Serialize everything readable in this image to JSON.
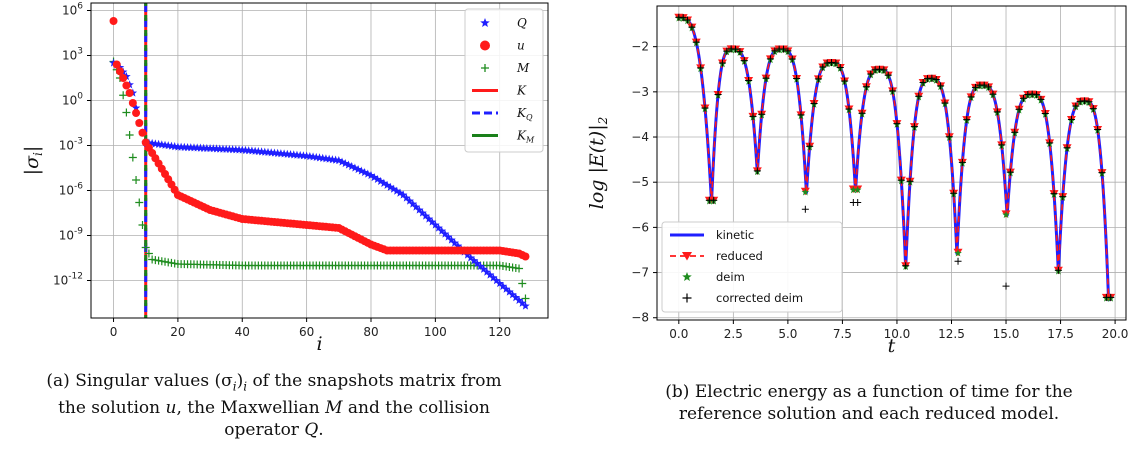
{
  "chart_data": [
    {
      "type": "scatter",
      "ylabel": "|σi|",
      "xlabel": "i",
      "yscale": "log",
      "ylim_log10": [
        -14.5,
        6.5
      ],
      "xlim": [
        -7,
        135
      ],
      "xticks": [
        0,
        20,
        40,
        60,
        80,
        100,
        120
      ],
      "yticks": [
        {
          "exp": 6,
          "label": "10^6"
        },
        {
          "exp": 3,
          "label": "10^3"
        },
        {
          "exp": 0,
          "label": "10^0"
        },
        {
          "exp": -3,
          "label": "10^-3"
        },
        {
          "exp": -6,
          "label": "10^-6"
        },
        {
          "exp": -9,
          "label": "10^-9"
        },
        {
          "exp": -12,
          "label": "10^-12"
        }
      ],
      "grid": true,
      "legend_position": "top-right",
      "legend": [
        {
          "label": "Q",
          "sub": "",
          "kind": "star",
          "color": "#1f1fff"
        },
        {
          "label": "u",
          "sub": "",
          "kind": "dot",
          "color": "#ff1a1a"
        },
        {
          "label": "M",
          "sub": "",
          "kind": "plus",
          "color": "#1e8c1e"
        },
        {
          "label": "K",
          "sub": "",
          "kind": "line-solid",
          "color": "#ff1a1a"
        },
        {
          "label": "K",
          "sub": "Q",
          "kind": "line-dash",
          "color": "#1f1fff"
        },
        {
          "label": "K",
          "sub": "M",
          "kind": "line-solid",
          "color": "#1a801a"
        }
      ],
      "vertical_line_i": 10,
      "series_log10": [
        {
          "name": "Q",
          "points": [
            [
              0,
              2.5
            ],
            [
              2,
              2.2
            ],
            [
              4,
              1.6
            ],
            [
              6,
              0.5
            ],
            [
              8,
              -1.5
            ],
            [
              10,
              -2.8
            ],
            [
              20,
              -3.1
            ],
            [
              40,
              -3.3
            ],
            [
              60,
              -3.7
            ],
            [
              70,
              -4.0
            ],
            [
              80,
              -5.0
            ],
            [
              90,
              -6.3
            ],
            [
              100,
              -8.3
            ],
            [
              110,
              -10.3
            ],
            [
              120,
              -12.2
            ],
            [
              128,
              -13.7
            ]
          ]
        },
        {
          "name": "u",
          "points": [
            [
              0,
              5.3
            ],
            [
              1,
              2.4
            ],
            [
              3,
              1.5
            ],
            [
              5,
              0.5
            ],
            [
              8,
              -1.5
            ],
            [
              10,
              -2.8
            ],
            [
              14,
              -4.2
            ],
            [
              20,
              -6.3
            ],
            [
              30,
              -7.3
            ],
            [
              40,
              -7.9
            ],
            [
              60,
              -8.3
            ],
            [
              70,
              -8.5
            ],
            [
              80,
              -9.6
            ],
            [
              85,
              -10.0
            ],
            [
              100,
              -10.0
            ],
            [
              120,
              -10.0
            ],
            [
              126,
              -10.2
            ],
            [
              128,
              -10.4
            ]
          ]
        },
        {
          "name": "M",
          "points": [
            [
              0,
              2.6
            ],
            [
              2,
              1.5
            ],
            [
              4,
              -0.8
            ],
            [
              6,
              -3.8
            ],
            [
              8,
              -6.8
            ],
            [
              10,
              -9.8
            ],
            [
              12,
              -10.6
            ],
            [
              20,
              -10.9
            ],
            [
              40,
              -11.0
            ],
            [
              80,
              -11.0
            ],
            [
              120,
              -11.0
            ],
            [
              126,
              -11.2
            ],
            [
              128,
              -13.2
            ]
          ]
        }
      ]
    },
    {
      "type": "line",
      "ylabel": "log |E(t)|2",
      "xlabel": "t",
      "xlim": [
        -1,
        20.5
      ],
      "ylim": [
        -8.05,
        -1.1
      ],
      "xticks": [
        0.0,
        2.5,
        5.0,
        7.5,
        10.0,
        12.5,
        15.0,
        17.5,
        20.0
      ],
      "xtick_labels": [
        "0.0",
        "2.5",
        "5.0",
        "7.5",
        "10.0",
        "12.5",
        "15.0",
        "17.5",
        "20.0"
      ],
      "yticks": [
        -2,
        -3,
        -4,
        -5,
        -6,
        -7,
        -8
      ],
      "ytick_labels": [
        "−2",
        "−3",
        "−4",
        "−5",
        "−6",
        "−7",
        "−8"
      ],
      "grid": true,
      "legend_position": "lower-left",
      "legend": [
        {
          "label": "kinetic",
          "kind": "line-solid",
          "color": "#1f1fff"
        },
        {
          "label": "reduced",
          "kind": "tri-dash",
          "color": "#ff1a1a"
        },
        {
          "label": "deim",
          "kind": "star",
          "color": "#1e8c1e"
        },
        {
          "label": "corrected deim",
          "kind": "plus",
          "color": "#000000"
        }
      ],
      "energy_model": {
        "t_start": 0,
        "t_end": 19.8,
        "start_value": -1.35,
        "minima": [
          [
            1.5,
            -5.45
          ],
          [
            3.6,
            -4.8
          ],
          [
            5.85,
            -5.25
          ],
          [
            8.1,
            -5.2
          ],
          [
            10.4,
            -6.9
          ],
          [
            12.75,
            -6.6
          ],
          [
            15.05,
            -5.75
          ],
          [
            17.4,
            -7.0
          ],
          [
            19.7,
            -7.6
          ]
        ],
        "maxima": [
          [
            2.45,
            -2.05
          ],
          [
            4.7,
            -2.05
          ],
          [
            7.0,
            -2.35
          ],
          [
            9.2,
            -2.5
          ],
          [
            11.55,
            -2.7
          ],
          [
            13.9,
            -2.85
          ],
          [
            16.2,
            -3.05
          ],
          [
            18.6,
            -3.2
          ]
        ]
      },
      "corrected_deim_outliers": [
        [
          5.85,
          -5.6
        ],
        [
          8.1,
          -5.45
        ],
        [
          12.75,
          -6.75
        ],
        [
          15.05,
          -7.3
        ]
      ]
    }
  ],
  "captions": {
    "a": "(a) Singular values (σi)i of the snapshots matrix from the solution u, the Maxwellian M and the collision operator Q.",
    "a_lines": [
      "(a) Singular values (σ",
      "i",
      ")",
      "i",
      " of the snapshots matrix from",
      "the solution ",
      "u",
      ", the Maxwellian ",
      "M",
      " and the collision",
      "operator ",
      "Q",
      "."
    ],
    "b_lines": [
      "(b) Electric energy as a function of time for the",
      "reference solution and each reduced model."
    ]
  }
}
